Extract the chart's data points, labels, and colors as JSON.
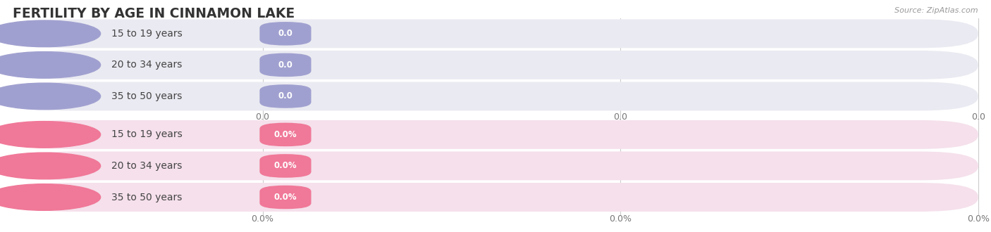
{
  "title": "FERTILITY BY AGE IN CINNAMON LAKE",
  "source": "Source: ZipAtlas.com",
  "top_rows": [
    {
      "label": "15 to 19 years",
      "value_str": "0.0"
    },
    {
      "label": "20 to 34 years",
      "value_str": "0.0"
    },
    {
      "label": "35 to 50 years",
      "value_str": "0.0"
    }
  ],
  "bottom_rows": [
    {
      "label": "15 to 19 years",
      "value_str": "0.0%"
    },
    {
      "label": "20 to 34 years",
      "value_str": "0.0%"
    },
    {
      "label": "35 to 50 years",
      "value_str": "0.0%"
    }
  ],
  "top_bar_bg": "#eaeaf2",
  "top_bar_fill": "#a0a0d0",
  "top_dot_color": "#a0a0d0",
  "bottom_bar_bg": "#f5e0eb",
  "bottom_bar_fill": "#f07898",
  "bottom_dot_color": "#f07898",
  "label_color": "#444444",
  "tick_color": "#777777",
  "grid_color": "#cccccc",
  "bg_color": "#ffffff",
  "title_color": "#333333",
  "source_color": "#999999",
  "top_xticks": [
    "0.0",
    "0.0",
    "0.0"
  ],
  "bottom_xticks": [
    "0.0%",
    "0.0%",
    "0.0%"
  ]
}
